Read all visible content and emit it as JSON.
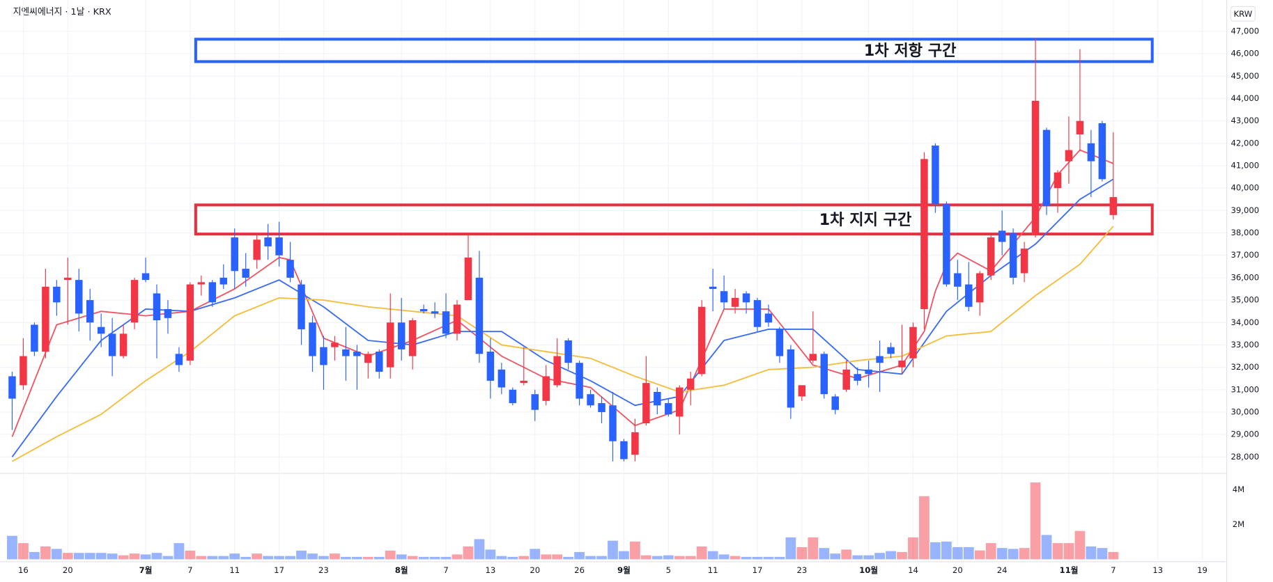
{
  "chart_data": {
    "type": "candlestick",
    "title": "지엔씨에너지 · 1날 · KRX",
    "unit": "KRW",
    "categories": [
      null,
      "16",
      null,
      null,
      null,
      "20",
      null,
      null,
      null,
      null,
      null,
      null,
      "7월",
      null,
      null,
      null,
      "7",
      null,
      null,
      null,
      "11",
      null,
      null,
      null,
      "17",
      null,
      null,
      null,
      "23",
      null,
      null,
      null,
      null,
      null,
      null,
      "8월",
      null,
      null,
      null,
      "7",
      null,
      null,
      null,
      "13",
      null,
      null,
      null,
      "20",
      null,
      null,
      null,
      "26",
      null,
      null,
      null,
      "9월",
      null,
      null,
      null,
      "5",
      null,
      null,
      null,
      "11",
      null,
      null,
      null,
      "17",
      null,
      null,
      null,
      "23",
      null,
      null,
      null,
      null,
      null,
      "10월",
      null,
      null,
      null,
      "14",
      null,
      null,
      null,
      "20",
      null,
      null,
      null,
      "24",
      null,
      null,
      null,
      null,
      null,
      "11월",
      null,
      null,
      null,
      "7",
      null,
      null,
      null,
      "13",
      null,
      null,
      null,
      "19"
    ],
    "open": [
      31600,
      31200,
      33900,
      32700,
      35600,
      35900,
      35900,
      35000,
      33800,
      33500,
      32500,
      34000,
      36200,
      35300,
      34600,
      32600,
      32300,
      35700,
      35800,
      36000,
      37800,
      36400,
      36800,
      37800,
      37800,
      36800,
      35700,
      34000,
      32900,
      32900,
      32800,
      32700,
      32200,
      32700,
      32000,
      34000,
      32500,
      34600,
      34500,
      34500,
      33500,
      35000,
      36000,
      32700,
      31900,
      31000,
      31300,
      30800,
      30500,
      31200,
      33200,
      32200,
      30800,
      30400,
      30300,
      28700,
      28100,
      29500,
      30900,
      30400,
      29800,
      31000,
      31700,
      35600,
      35400,
      34700,
      35300,
      35000,
      34400,
      33700,
      32800,
      30700,
      32300,
      32600,
      30700,
      31000,
      31700,
      31900,
      32500,
      32900,
      32000,
      32400,
      34600,
      41900,
      39300,
      36200,
      35700,
      34900,
      36100,
      38100,
      38000,
      36200,
      37900,
      42600,
      40000,
      41200,
      42400,
      42000,
      42900,
      38800,
      null,
      null,
      null,
      null,
      null,
      null,
      null,
      null
    ],
    "high": [
      31800,
      33300,
      34000,
      36400,
      35900,
      36900,
      36400,
      35500,
      34400,
      34200,
      33900,
      36000,
      36900,
      35700,
      35000,
      32900,
      35800,
      36100,
      35900,
      36600,
      38200,
      37100,
      38000,
      38400,
      38500,
      37600,
      35900,
      34300,
      33400,
      33400,
      33800,
      33000,
      32700,
      32800,
      35300,
      35100,
      34200,
      34800,
      34900,
      35300,
      35000,
      38000,
      37200,
      33300,
      32200,
      31100,
      32900,
      31000,
      32100,
      33300,
      33300,
      32300,
      31000,
      30700,
      30900,
      28800,
      29700,
      32500,
      31100,
      30600,
      31200,
      31800,
      35000,
      36400,
      36100,
      35500,
      35400,
      35100,
      34800,
      33800,
      33000,
      31200,
      34500,
      32700,
      30800,
      32300,
      32000,
      32300,
      33200,
      33100,
      33900,
      34000,
      41600,
      42000,
      39400,
      36800,
      36700,
      36300,
      37900,
      39000,
      38200,
      37600,
      46700,
      42700,
      40800,
      43200,
      46200,
      42600,
      43000,
      42500,
      null,
      null,
      null,
      null,
      null,
      null,
      null,
      null
    ],
    "low": [
      29200,
      31000,
      32500,
      32400,
      34300,
      33900,
      33600,
      33200,
      32900,
      31600,
      32400,
      33700,
      35800,
      32400,
      33500,
      31800,
      32100,
      35200,
      34700,
      35500,
      35500,
      35600,
      36400,
      36800,
      36500,
      35800,
      33000,
      31800,
      31000,
      32300,
      31400,
      31000,
      31500,
      31500,
      31500,
      32300,
      31900,
      34400,
      34200,
      33300,
      33200,
      35000,
      32200,
      30600,
      30800,
      30300,
      31200,
      29600,
      30300,
      31100,
      31900,
      30300,
      30200,
      29500,
      27800,
      27800,
      27800,
      29400,
      29900,
      29800,
      29000,
      30300,
      31600,
      34500,
      34600,
      34400,
      34400,
      33600,
      33800,
      32200,
      29700,
      30500,
      32200,
      30600,
      29900,
      30900,
      31200,
      31100,
      30900,
      32400,
      31700,
      32000,
      33700,
      38900,
      35600,
      35000,
      34500,
      34300,
      35900,
      37000,
      35700,
      35800,
      37800,
      38800,
      38900,
      40200,
      41700,
      39600,
      40300,
      38600,
      null,
      null,
      null,
      null,
      null,
      null,
      null,
      null
    ],
    "close": [
      30600,
      32500,
      32700,
      35600,
      34900,
      36000,
      34400,
      34000,
      33500,
      32500,
      33500,
      35900,
      35900,
      34100,
      34200,
      32100,
      35700,
      35800,
      34900,
      35700,
      36300,
      36000,
      37700,
      37400,
      37000,
      36000,
      33700,
      32500,
      32100,
      33100,
      32500,
      32500,
      32600,
      31800,
      34000,
      32800,
      34100,
      34500,
      34400,
      33500,
      34800,
      36900,
      32600,
      31400,
      31100,
      30400,
      31400,
      30100,
      31600,
      32500,
      32200,
      30600,
      30300,
      30000,
      28700,
      27900,
      29100,
      31300,
      30300,
      29900,
      31100,
      31500,
      34700,
      35500,
      34900,
      35100,
      34900,
      33800,
      34000,
      32500,
      30200,
      31200,
      32600,
      30800,
      30100,
      31900,
      31400,
      31700,
      32200,
      32600,
      32300,
      33800,
      41300,
      39300,
      35700,
      35600,
      34700,
      36200,
      37800,
      37600,
      36000,
      37300,
      43900,
      39200,
      40700,
      41700,
      43000,
      41200,
      40400,
      39600,
      null,
      null,
      null,
      null,
      null,
      null,
      null,
      null
    ],
    "up_color": "#f23645",
    "down_color": "#2962ff",
    "ylim": [
      27300,
      48400
    ],
    "yticks": [
      {
        "value": 28000,
        "label": "28,000"
      },
      {
        "value": 29000,
        "label": "29,000"
      },
      {
        "value": 30000,
        "label": "30,000"
      },
      {
        "value": 31000,
        "label": "31,000"
      },
      {
        "value": 32000,
        "label": "32,000"
      },
      {
        "value": 33000,
        "label": "33,000"
      },
      {
        "value": 34000,
        "label": "34,000"
      },
      {
        "value": 35000,
        "label": "35,000"
      },
      {
        "value": 36000,
        "label": "36,000"
      },
      {
        "value": 37000,
        "label": "37,000"
      },
      {
        "value": 38000,
        "label": "38,000"
      },
      {
        "value": 39000,
        "label": "39,000"
      },
      {
        "value": 40000,
        "label": "40,000"
      },
      {
        "value": 41000,
        "label": "41,000"
      },
      {
        "value": 42000,
        "label": "42,000"
      },
      {
        "value": 43000,
        "label": "43,000"
      },
      {
        "value": 44000,
        "label": "44,000"
      },
      {
        "value": 45000,
        "label": "45,000"
      },
      {
        "value": 46000,
        "label": "46,000"
      },
      {
        "value": 47000,
        "label": "47,000"
      }
    ],
    "grid": true,
    "lines": [
      {
        "color": "#ef5664",
        "x": [
          0,
          2,
          4,
          8,
          12,
          16,
          20,
          24,
          25,
          28,
          32,
          36,
          40,
          44,
          48,
          52,
          56,
          60,
          64,
          68,
          72,
          76,
          80,
          82,
          83,
          84,
          85,
          88,
          92,
          94,
          96,
          99
        ],
        "values": [
          28900,
          31400,
          33900,
          34500,
          34300,
          34500,
          35500,
          36900,
          36800,
          33300,
          32500,
          33200,
          34100,
          32500,
          31500,
          31100,
          29400,
          30100,
          34600,
          34600,
          32100,
          31500,
          32100,
          33600,
          35400,
          36600,
          37100,
          36300,
          38700,
          40600,
          41700,
          41100
        ]
      },
      {
        "color": "#3b6cf2",
        "x": [
          0,
          4,
          8,
          12,
          16,
          20,
          24,
          28,
          32,
          36,
          40,
          44,
          48,
          52,
          56,
          60,
          64,
          68,
          72,
          76,
          80,
          84,
          88,
          92,
          96,
          99
        ],
        "values": [
          28000,
          30700,
          33200,
          34600,
          34500,
          35100,
          35900,
          34700,
          33200,
          33000,
          33600,
          33600,
          32300,
          31400,
          30300,
          30700,
          33200,
          33700,
          33700,
          31900,
          31700,
          34500,
          36100,
          37500,
          39500,
          40400
        ]
      },
      {
        "color": "#f5bd3b",
        "x": [
          0,
          4,
          8,
          12,
          16,
          20,
          24,
          28,
          32,
          36,
          40,
          44,
          48,
          52,
          56,
          60,
          64,
          68,
          72,
          76,
          80,
          84,
          88,
          92,
          96,
          99
        ],
        "values": [
          27800,
          28900,
          29900,
          31400,
          32700,
          34300,
          35100,
          35000,
          34700,
          34500,
          34300,
          33000,
          32700,
          32400,
          31600,
          30900,
          31200,
          31900,
          32000,
          32300,
          32500,
          33400,
          33600,
          35200,
          36600,
          38300
        ]
      }
    ],
    "zones": [
      {
        "label": "1차 저항 구간",
        "color": "#2962ff",
        "ylim": [
          45650,
          46650
        ],
        "x": [
          17,
          103
        ]
      },
      {
        "label": "1차 지지 구간",
        "color": "#e5303f",
        "ylim": [
          37950,
          39250
        ],
        "x": [
          17,
          103
        ]
      }
    ],
    "volume": {
      "values": [
        1.35,
        0.93,
        0.42,
        0.74,
        0.6,
        0.37,
        0.37,
        0.37,
        0.37,
        0.33,
        0.23,
        0.33,
        0.28,
        0.37,
        0.19,
        0.93,
        0.5,
        0.19,
        0.19,
        0.19,
        0.33,
        0.14,
        0.33,
        0.19,
        0.19,
        0.19,
        0.5,
        0.33,
        0.19,
        0.33,
        0.14,
        0.14,
        0.14,
        0.14,
        0.5,
        0.28,
        0.19,
        0.14,
        0.14,
        0.14,
        0.28,
        0.74,
        1.16,
        0.56,
        0.19,
        0.14,
        0.19,
        0.6,
        0.28,
        0.28,
        0.14,
        0.42,
        0.19,
        0.19,
        1.07,
        0.47,
        1.02,
        0.23,
        0.19,
        0.23,
        0.19,
        0.19,
        0.74,
        0.47,
        0.28,
        0.19,
        0.14,
        0.14,
        0.14,
        0.14,
        1.26,
        0.7,
        1.26,
        0.65,
        0.33,
        0.56,
        0.23,
        0.23,
        0.37,
        0.47,
        0.42,
        1.26,
        3.63,
        0.98,
        1.02,
        0.7,
        0.7,
        0.51,
        0.93,
        0.65,
        0.6,
        0.65,
        4.42,
        1.4,
        0.93,
        0.93,
        1.63,
        0.74,
        0.65,
        0.42,
        null,
        null,
        null,
        null,
        null,
        null,
        null,
        null
      ],
      "ylim": [
        0,
        4.8
      ],
      "yticks": [
        {
          "value": 2,
          "label": "2M"
        },
        {
          "value": 4,
          "label": "4M"
        }
      ]
    }
  }
}
